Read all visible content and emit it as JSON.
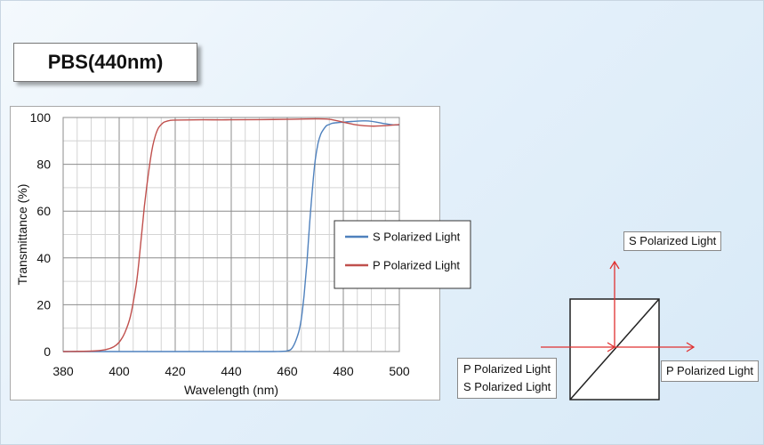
{
  "title": "PBS(440nm)",
  "chart_data": {
    "type": "line",
    "xlabel": "Wavelength (nm)",
    "ylabel": "Transmittance (%)",
    "xlim": [
      380,
      500
    ],
    "ylim": [
      0,
      100
    ],
    "xticks": [
      380,
      400,
      420,
      440,
      460,
      480,
      500
    ],
    "yticks": [
      0,
      20,
      40,
      60,
      80,
      100
    ],
    "grid": true,
    "legend_position": "right",
    "series": [
      {
        "name": "S Polarized Light",
        "color": "#4f81bd",
        "x": [
          380,
          400,
          420,
          440,
          455,
          460,
          462,
          464,
          465,
          466,
          467,
          468,
          469,
          470,
          471,
          472,
          473,
          474,
          475,
          476,
          478,
          480,
          483,
          486,
          489,
          492,
          495,
          498,
          500
        ],
        "y": [
          0,
          0,
          0,
          0,
          0,
          0.3,
          2,
          8,
          14,
          24,
          38,
          55,
          70,
          82,
          89,
          93,
          95,
          96.5,
          97,
          97.5,
          97.8,
          98,
          98.3,
          98.5,
          98.5,
          98,
          97.3,
          96.8,
          96.8
        ]
      },
      {
        "name": "P Polarized Light",
        "color": "#c0504d",
        "x": [
          380,
          390,
          395,
          398,
          400,
          402,
          404,
          406,
          407,
          408,
          409,
          410,
          411,
          412,
          413,
          414,
          415,
          416,
          417,
          418,
          420,
          430,
          440,
          450,
          460,
          470,
          475,
          480,
          485,
          490,
          495,
          500
        ],
        "y": [
          0,
          0.2,
          0.8,
          2,
          4,
          8,
          15,
          28,
          38,
          50,
          62,
          72,
          81,
          88,
          92.5,
          95.5,
          97,
          98,
          98.4,
          98.7,
          98.9,
          99,
          99,
          99.1,
          99.2,
          99.4,
          99.2,
          98,
          96.8,
          96.3,
          96.5,
          97
        ]
      }
    ]
  },
  "diagram": {
    "label_top": "S Polarized Light",
    "label_right": "P Polarized Light",
    "label_input_p": "P Polarized Light",
    "label_input_s": "S Polarized Light"
  }
}
